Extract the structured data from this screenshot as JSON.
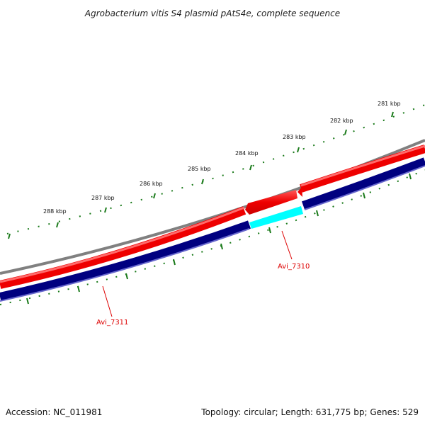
{
  "title": "Agrobacterium vitis S4 plasmid pAtS4e, complete sequence",
  "footer": {
    "accession": "Accession: NC_011981",
    "summary": "Topology: circular; Length: 631,775 bp; Genes: 529"
  },
  "scale": {
    "labels": [
      "281 kbp",
      "282 kbp",
      "283 kbp",
      "284 kbp",
      "285 kbp",
      "286 kbp",
      "287 kbp",
      "288 kbp"
    ],
    "tick_color": "#1a7a1a"
  },
  "genes": [
    {
      "name": "Avi_7310",
      "color": "#00ffff",
      "label_color": "#dd0000"
    },
    {
      "name": "Avi_7311",
      "color": "#000080",
      "label_color": "#dd0000"
    }
  ],
  "colors": {
    "backbone": "#808080",
    "forward_cds": "#ee0000",
    "reverse_cds": "#000080",
    "highlight_cds": "#00ffff"
  }
}
